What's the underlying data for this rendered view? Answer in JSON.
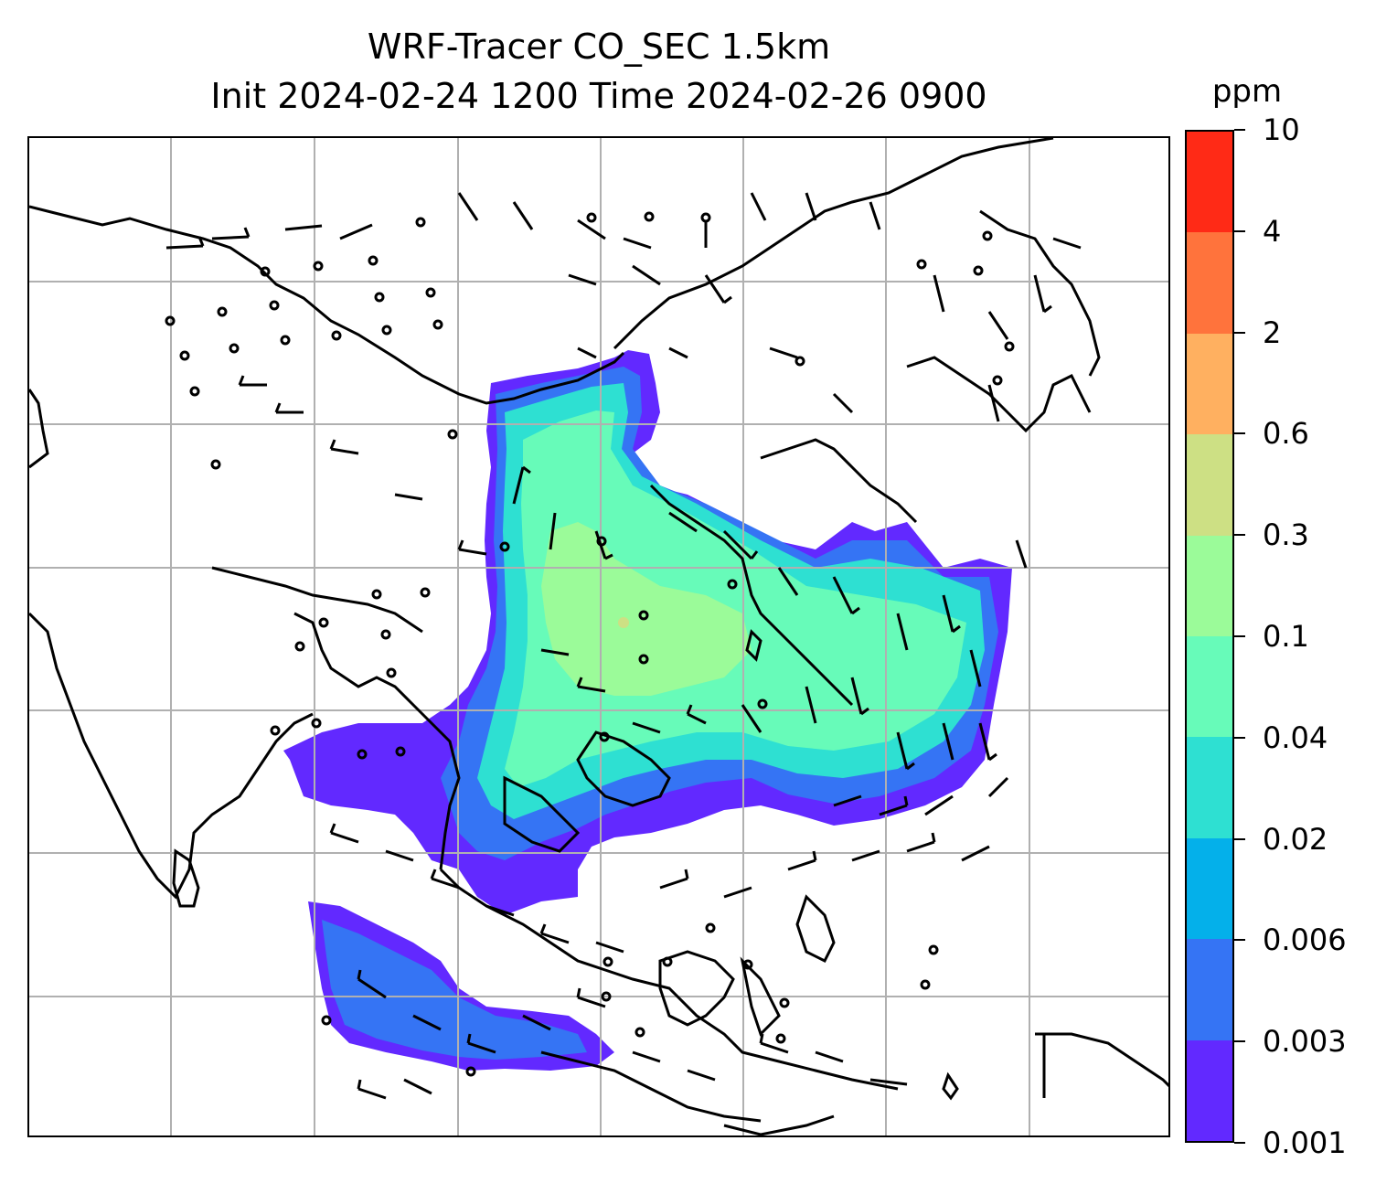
{
  "title": {
    "line1": "WRF-Tracer CO_SEC 1.5km",
    "line2": "Init 2024-02-24 1200 Time 2024-02-26 0900"
  },
  "colorbar": {
    "unit": "ppm",
    "levels": [
      "0.001",
      "0.003",
      "0.006",
      "0.02",
      "0.04",
      "0.1",
      "0.3",
      "0.6",
      "2",
      "4",
      "10"
    ],
    "colors": [
      "#6229ff",
      "#3574f4",
      "#04b0ea",
      "#2ee0d2",
      "#67fbb9",
      "#9bfb99",
      "#cde084",
      "#ffb060",
      "#ff733c",
      "#ff2a16"
    ]
  },
  "map": {
    "gridlines": true,
    "field": "CO_SEC tracer concentration with wind barbs",
    "coastline_color": "#000000",
    "grid_color": "#b0b0b0"
  }
}
